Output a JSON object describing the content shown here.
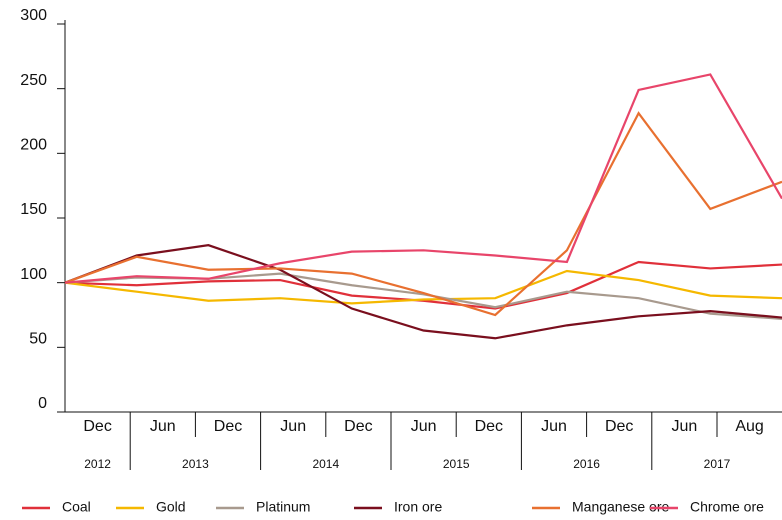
{
  "chart_data": {
    "type": "line",
    "categories": [
      "Dec",
      "Jun",
      "Dec",
      "Jun",
      "Dec",
      "Jun",
      "Dec",
      "Jun",
      "Dec",
      "Jun",
      "Aug"
    ],
    "years": [
      "2012",
      "2013",
      "2014",
      "2015",
      "2016",
      "2017"
    ],
    "series": [
      {
        "name": "Coal",
        "color": "#e0303a",
        "values": [
          100,
          98,
          101,
          102,
          90,
          86,
          80,
          92,
          116,
          111,
          114
        ]
      },
      {
        "name": "Gold",
        "color": "#f5b800",
        "values": [
          100,
          93,
          86,
          88,
          84,
          87,
          88,
          109,
          102,
          90,
          88
        ]
      },
      {
        "name": "Platinum",
        "color": "#a89a8e",
        "values": [
          100,
          104,
          103,
          107,
          98,
          91,
          81,
          93,
          88,
          76,
          72
        ]
      },
      {
        "name": "Iron ore",
        "color": "#7a0f1e",
        "values": [
          100,
          121,
          129,
          110,
          80,
          63,
          57,
          67,
          74,
          78,
          73
        ]
      },
      {
        "name": "Manganese ore",
        "color": "#e87030",
        "values": [
          100,
          120,
          110,
          111,
          107,
          92,
          75,
          125,
          231,
          157,
          178
        ]
      },
      {
        "name": "Chrome ore",
        "color": "#e8456a",
        "values": [
          100,
          105,
          103,
          115,
          124,
          125,
          121,
          116,
          249,
          261,
          165
        ]
      }
    ],
    "ylim": [
      0,
      300
    ],
    "yticks": [
      0,
      50,
      100,
      150,
      200,
      250,
      300
    ]
  }
}
